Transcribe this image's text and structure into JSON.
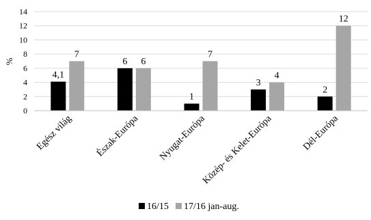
{
  "chart_data": {
    "type": "bar",
    "title": "",
    "xlabel": "",
    "ylabel": "%",
    "ylim": [
      0,
      14
    ],
    "yticks": [
      "0",
      "2",
      "4",
      "6",
      "8",
      "10",
      "12",
      "14"
    ],
    "ytick_values": [
      0,
      2,
      4,
      6,
      8,
      10,
      12,
      14
    ],
    "grid": true,
    "legend_position": "bottom",
    "categories": [
      "Egész világ",
      "Észak-Európa",
      "Nyugat-Európa",
      "Közép- és Kelet-Európa",
      "Dél-Európa"
    ],
    "series": [
      {
        "name": "16/15",
        "color": "#000000",
        "values": [
          4.1,
          6,
          1,
          3,
          2
        ],
        "labels": [
          "4,1",
          "6",
          "1",
          "3",
          "2"
        ]
      },
      {
        "name": "17/16 jan-aug.",
        "color": "#a6a6a6",
        "values": [
          7,
          6,
          7,
          4,
          12
        ],
        "labels": [
          "7",
          "6",
          "7",
          "4",
          "12"
        ]
      }
    ]
  }
}
